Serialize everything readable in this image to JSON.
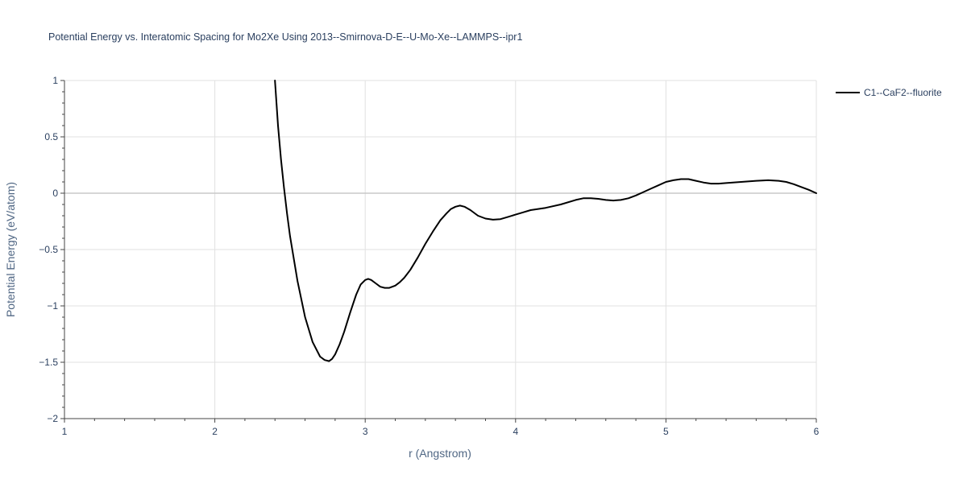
{
  "chart_data": {
    "type": "line",
    "title": "Potential Energy vs. Interatomic Spacing for Mo2Xe Using 2013--Smirnova-D-E--U-Mo-Xe--LAMMPS--ipr1",
    "xlabel": "r (Angstrom)",
    "ylabel": "Potential Energy (eV/atom)",
    "xlim": [
      1,
      6
    ],
    "ylim": [
      -2,
      1
    ],
    "xticks": [
      1,
      2,
      3,
      4,
      5,
      6
    ],
    "xtick_labels": [
      "1",
      "2",
      "3",
      "4",
      "5",
      "6"
    ],
    "yticks": [
      1,
      0.5,
      0,
      -0.5,
      -1,
      -1.5,
      -2
    ],
    "ytick_labels": [
      "1",
      "0.5",
      "0",
      "−0.5",
      "−1",
      "−1.5",
      "−2"
    ],
    "grid": true,
    "legend_position": "top-right",
    "series": [
      {
        "name": "C1--CaF2--fluorite",
        "color": "#000000",
        "x": [
          2.4,
          2.42,
          2.44,
          2.46,
          2.48,
          2.5,
          2.55,
          2.6,
          2.65,
          2.7,
          2.73,
          2.76,
          2.78,
          2.8,
          2.83,
          2.86,
          2.9,
          2.94,
          2.97,
          3.0,
          3.02,
          3.04,
          3.07,
          3.1,
          3.13,
          3.16,
          3.2,
          3.23,
          3.26,
          3.3,
          3.35,
          3.4,
          3.45,
          3.5,
          3.54,
          3.57,
          3.6,
          3.63,
          3.66,
          3.7,
          3.75,
          3.8,
          3.85,
          3.9,
          3.95,
          4.0,
          4.05,
          4.1,
          4.2,
          4.3,
          4.4,
          4.45,
          4.5,
          4.55,
          4.6,
          4.65,
          4.7,
          4.75,
          4.8,
          4.85,
          4.9,
          4.95,
          5.0,
          5.05,
          5.1,
          5.15,
          5.2,
          5.25,
          5.3,
          5.35,
          5.4,
          5.5,
          5.6,
          5.68,
          5.75,
          5.8,
          5.85,
          5.9,
          5.95,
          6.0
        ],
        "y": [
          1.0,
          0.6,
          0.3,
          0.05,
          -0.18,
          -0.38,
          -0.78,
          -1.1,
          -1.32,
          -1.45,
          -1.48,
          -1.49,
          -1.47,
          -1.43,
          -1.34,
          -1.23,
          -1.06,
          -0.9,
          -0.81,
          -0.77,
          -0.76,
          -0.77,
          -0.8,
          -0.83,
          -0.84,
          -0.84,
          -0.82,
          -0.79,
          -0.75,
          -0.68,
          -0.57,
          -0.45,
          -0.34,
          -0.24,
          -0.18,
          -0.14,
          -0.12,
          -0.11,
          -0.12,
          -0.15,
          -0.2,
          -0.225,
          -0.235,
          -0.23,
          -0.21,
          -0.19,
          -0.17,
          -0.15,
          -0.13,
          -0.1,
          -0.06,
          -0.045,
          -0.045,
          -0.05,
          -0.06,
          -0.065,
          -0.06,
          -0.045,
          -0.02,
          0.01,
          0.04,
          0.07,
          0.1,
          0.115,
          0.125,
          0.125,
          0.11,
          0.095,
          0.085,
          0.085,
          0.09,
          0.1,
          0.11,
          0.115,
          0.11,
          0.1,
          0.08,
          0.055,
          0.03,
          0.0
        ]
      }
    ]
  }
}
